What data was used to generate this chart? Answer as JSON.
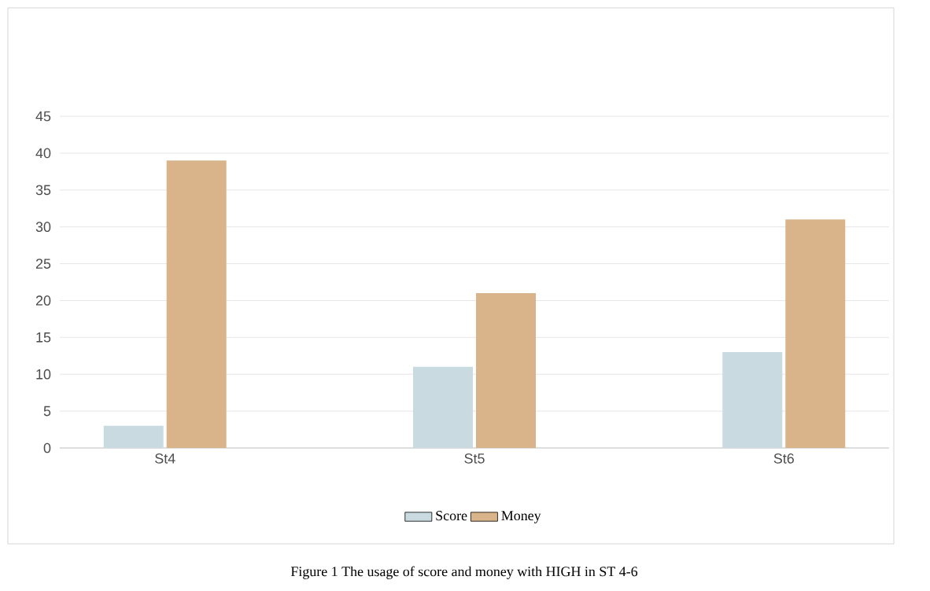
{
  "chart_data": {
    "type": "bar",
    "categories": [
      "St4",
      "St5",
      "St6"
    ],
    "series": [
      {
        "name": "Score",
        "color": "#c9dbe0",
        "values": [
          3,
          11,
          13
        ]
      },
      {
        "name": "Money",
        "color": "#d9b48a",
        "values": [
          39,
          21,
          31
        ]
      }
    ],
    "ylim": [
      0,
      45
    ],
    "yticks": [
      0,
      5,
      10,
      15,
      20,
      25,
      30,
      35,
      40,
      45
    ],
    "grid": "y",
    "legend": "bottom",
    "annotations": [
      "Figure 1 The usage of score and money with HIGH in ST 4-6"
    ]
  }
}
